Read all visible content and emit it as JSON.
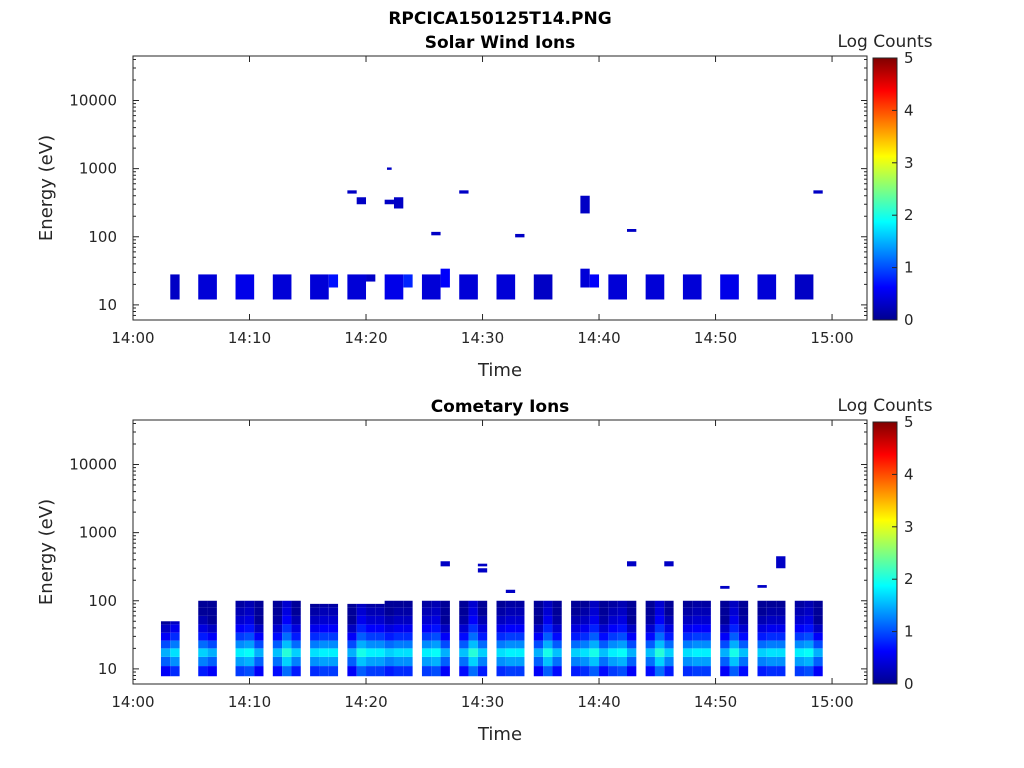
{
  "figure_title": "RPCICA150125T14.PNG",
  "colorbar": {
    "label": "Log Counts",
    "ticks": [
      "0",
      "1",
      "2",
      "3",
      "4",
      "5"
    ],
    "range": [
      0,
      5
    ],
    "colormap": "jet"
  },
  "chart_data": [
    {
      "type": "heatmap",
      "title": "Solar Wind Ions",
      "xlabel": "Time",
      "ylabel": "Energy (eV)",
      "x_ticks": [
        "14:00",
        "14:10",
        "14:20",
        "14:30",
        "14:40",
        "14:50",
        "15:00"
      ],
      "y_ticks": [
        "10",
        "100",
        "1000",
        "10000"
      ],
      "y_scale": "log",
      "xlim_minutes": [
        0,
        63
      ],
      "ylim": [
        6,
        45000
      ],
      "cells": [
        {
          "t0": 3.2,
          "t1": 4.0,
          "e0": 12,
          "e1": 28,
          "v": 0.3
        },
        {
          "t0": 5.6,
          "t1": 7.2,
          "e0": 12,
          "e1": 28,
          "v": 0.4
        },
        {
          "t0": 8.8,
          "t1": 10.4,
          "e0": 12,
          "e1": 28,
          "v": 0.5
        },
        {
          "t0": 12.0,
          "t1": 13.6,
          "e0": 12,
          "e1": 28,
          "v": 0.4
        },
        {
          "t0": 15.2,
          "t1": 16.8,
          "e0": 12,
          "e1": 28,
          "v": 0.4
        },
        {
          "t0": 16.8,
          "t1": 17.6,
          "e0": 18,
          "e1": 28,
          "v": 0.7
        },
        {
          "t0": 18.4,
          "t1": 20.0,
          "e0": 12,
          "e1": 28,
          "v": 0.4
        },
        {
          "t0": 20.0,
          "t1": 20.8,
          "e0": 22,
          "e1": 28,
          "v": 0.3
        },
        {
          "t0": 21.6,
          "t1": 23.2,
          "e0": 12,
          "e1": 28,
          "v": 0.5
        },
        {
          "t0": 23.2,
          "t1": 24.0,
          "e0": 18,
          "e1": 28,
          "v": 0.8
        },
        {
          "t0": 24.8,
          "t1": 26.4,
          "e0": 12,
          "e1": 28,
          "v": 0.4
        },
        {
          "t0": 26.4,
          "t1": 27.2,
          "e0": 18,
          "e1": 34,
          "v": 0.6
        },
        {
          "t0": 28.0,
          "t1": 29.6,
          "e0": 12,
          "e1": 28,
          "v": 0.4
        },
        {
          "t0": 31.2,
          "t1": 32.8,
          "e0": 12,
          "e1": 28,
          "v": 0.4
        },
        {
          "t0": 34.4,
          "t1": 36.0,
          "e0": 12,
          "e1": 28,
          "v": 0.3
        },
        {
          "t0": 38.4,
          "t1": 39.2,
          "e0": 18,
          "e1": 34,
          "v": 0.4
        },
        {
          "t0": 39.2,
          "t1": 40.0,
          "e0": 18,
          "e1": 28,
          "v": 0.6
        },
        {
          "t0": 40.8,
          "t1": 42.4,
          "e0": 12,
          "e1": 28,
          "v": 0.4
        },
        {
          "t0": 44.0,
          "t1": 45.6,
          "e0": 12,
          "e1": 28,
          "v": 0.4
        },
        {
          "t0": 47.2,
          "t1": 48.8,
          "e0": 12,
          "e1": 28,
          "v": 0.4
        },
        {
          "t0": 50.4,
          "t1": 52.0,
          "e0": 12,
          "e1": 28,
          "v": 0.5
        },
        {
          "t0": 53.6,
          "t1": 55.2,
          "e0": 12,
          "e1": 28,
          "v": 0.4
        },
        {
          "t0": 56.8,
          "t1": 58.4,
          "e0": 12,
          "e1": 28,
          "v": 0.3
        },
        {
          "t0": 18.4,
          "t1": 19.2,
          "e0": 430,
          "e1": 480,
          "v": 0.3
        },
        {
          "t0": 19.2,
          "t1": 20.0,
          "e0": 300,
          "e1": 380,
          "v": 0.3
        },
        {
          "t0": 21.6,
          "t1": 22.4,
          "e0": 300,
          "e1": 350,
          "v": 0.3
        },
        {
          "t0": 22.4,
          "t1": 23.2,
          "e0": 260,
          "e1": 380,
          "v": 0.3
        },
        {
          "t0": 21.8,
          "t1": 22.2,
          "e0": 960,
          "e1": 1040,
          "v": 0.3
        },
        {
          "t0": 25.6,
          "t1": 26.4,
          "e0": 105,
          "e1": 118,
          "v": 0.3
        },
        {
          "t0": 28.0,
          "t1": 28.8,
          "e0": 430,
          "e1": 480,
          "v": 0.3
        },
        {
          "t0": 32.8,
          "t1": 33.6,
          "e0": 98,
          "e1": 110,
          "v": 0.3
        },
        {
          "t0": 38.4,
          "t1": 39.2,
          "e0": 220,
          "e1": 400,
          "v": 0.3
        },
        {
          "t0": 42.4,
          "t1": 43.2,
          "e0": 118,
          "e1": 130,
          "v": 0.3
        },
        {
          "t0": 58.4,
          "t1": 59.2,
          "e0": 430,
          "e1": 480,
          "v": 0.3
        }
      ]
    },
    {
      "type": "heatmap",
      "title": "Cometary Ions",
      "xlabel": "Time",
      "ylabel": "Energy (eV)",
      "x_ticks": [
        "14:00",
        "14:10",
        "14:20",
        "14:30",
        "14:40",
        "14:50",
        "15:00"
      ],
      "y_ticks": [
        "10",
        "100",
        "1000",
        "10000"
      ],
      "y_scale": "log",
      "xlim_minutes": [
        0,
        63
      ],
      "ylim": [
        6,
        45000
      ],
      "profile": {
        "bins": [
          {
            "e0": 7.8,
            "e1": 11,
            "v": 1.0
          },
          {
            "e0": 11,
            "e1": 15,
            "v": 1.5
          },
          {
            "e0": 15,
            "e1": 20,
            "v": 1.9
          },
          {
            "e0": 20,
            "e1": 26,
            "v": 1.4
          },
          {
            "e0": 26,
            "e1": 34,
            "v": 1.0
          },
          {
            "e0": 34,
            "e1": 45,
            "v": 0.7
          },
          {
            "e0": 45,
            "e1": 60,
            "v": 0.45
          },
          {
            "e0": 60,
            "e1": 80,
            "v": 0.3
          },
          {
            "e0": 80,
            "e1": 100,
            "v": 0.2
          }
        ]
      },
      "columns": [
        {
          "t0": 2.4,
          "top": 50,
          "w": 1.6
        },
        {
          "t0": 5.6,
          "top": 110,
          "w": 1.6
        },
        {
          "t0": 8.8,
          "top": 100,
          "w": 2.4
        },
        {
          "t0": 12.0,
          "top": 100,
          "w": 2.4
        },
        {
          "t0": 15.2,
          "top": 90,
          "w": 2.4
        },
        {
          "t0": 18.4,
          "top": 90,
          "w": 3.2
        },
        {
          "t0": 21.6,
          "top": 100,
          "w": 2.4
        },
        {
          "t0": 24.8,
          "top": 130,
          "w": 2.4
        },
        {
          "t0": 28.0,
          "top": 140,
          "w": 2.4
        },
        {
          "t0": 31.2,
          "top": 110,
          "w": 2.4
        },
        {
          "t0": 34.4,
          "top": 110,
          "w": 2.4
        },
        {
          "t0": 37.6,
          "top": 110,
          "w": 3.2
        },
        {
          "t0": 40.8,
          "top": 130,
          "w": 2.4
        },
        {
          "t0": 44.0,
          "top": 100,
          "w": 2.4
        },
        {
          "t0": 47.2,
          "top": 130,
          "w": 2.4
        },
        {
          "t0": 50.4,
          "top": 110,
          "w": 2.4
        },
        {
          "t0": 53.6,
          "top": 110,
          "w": 2.4
        },
        {
          "t0": 56.8,
          "top": 130,
          "w": 2.4
        }
      ],
      "cells": [
        {
          "t0": 26.4,
          "t1": 27.2,
          "e0": 320,
          "e1": 380,
          "v": 0.3
        },
        {
          "t0": 29.6,
          "t1": 30.4,
          "e0": 260,
          "e1": 300,
          "v": 0.3
        },
        {
          "t0": 29.6,
          "t1": 30.4,
          "e0": 320,
          "e1": 350,
          "v": 0.3
        },
        {
          "t0": 42.4,
          "t1": 43.2,
          "e0": 320,
          "e1": 380,
          "v": 0.3
        },
        {
          "t0": 45.6,
          "t1": 46.4,
          "e0": 320,
          "e1": 380,
          "v": 0.3
        },
        {
          "t0": 55.2,
          "t1": 56.0,
          "e0": 300,
          "e1": 450,
          "v": 0.3
        },
        {
          "t0": 53.6,
          "t1": 54.4,
          "e0": 155,
          "e1": 170,
          "v": 0.3
        },
        {
          "t0": 50.4,
          "t1": 51.2,
          "e0": 150,
          "e1": 165,
          "v": 0.3
        },
        {
          "t0": 32.0,
          "t1": 32.8,
          "e0": 130,
          "e1": 145,
          "v": 0.3
        }
      ]
    }
  ]
}
